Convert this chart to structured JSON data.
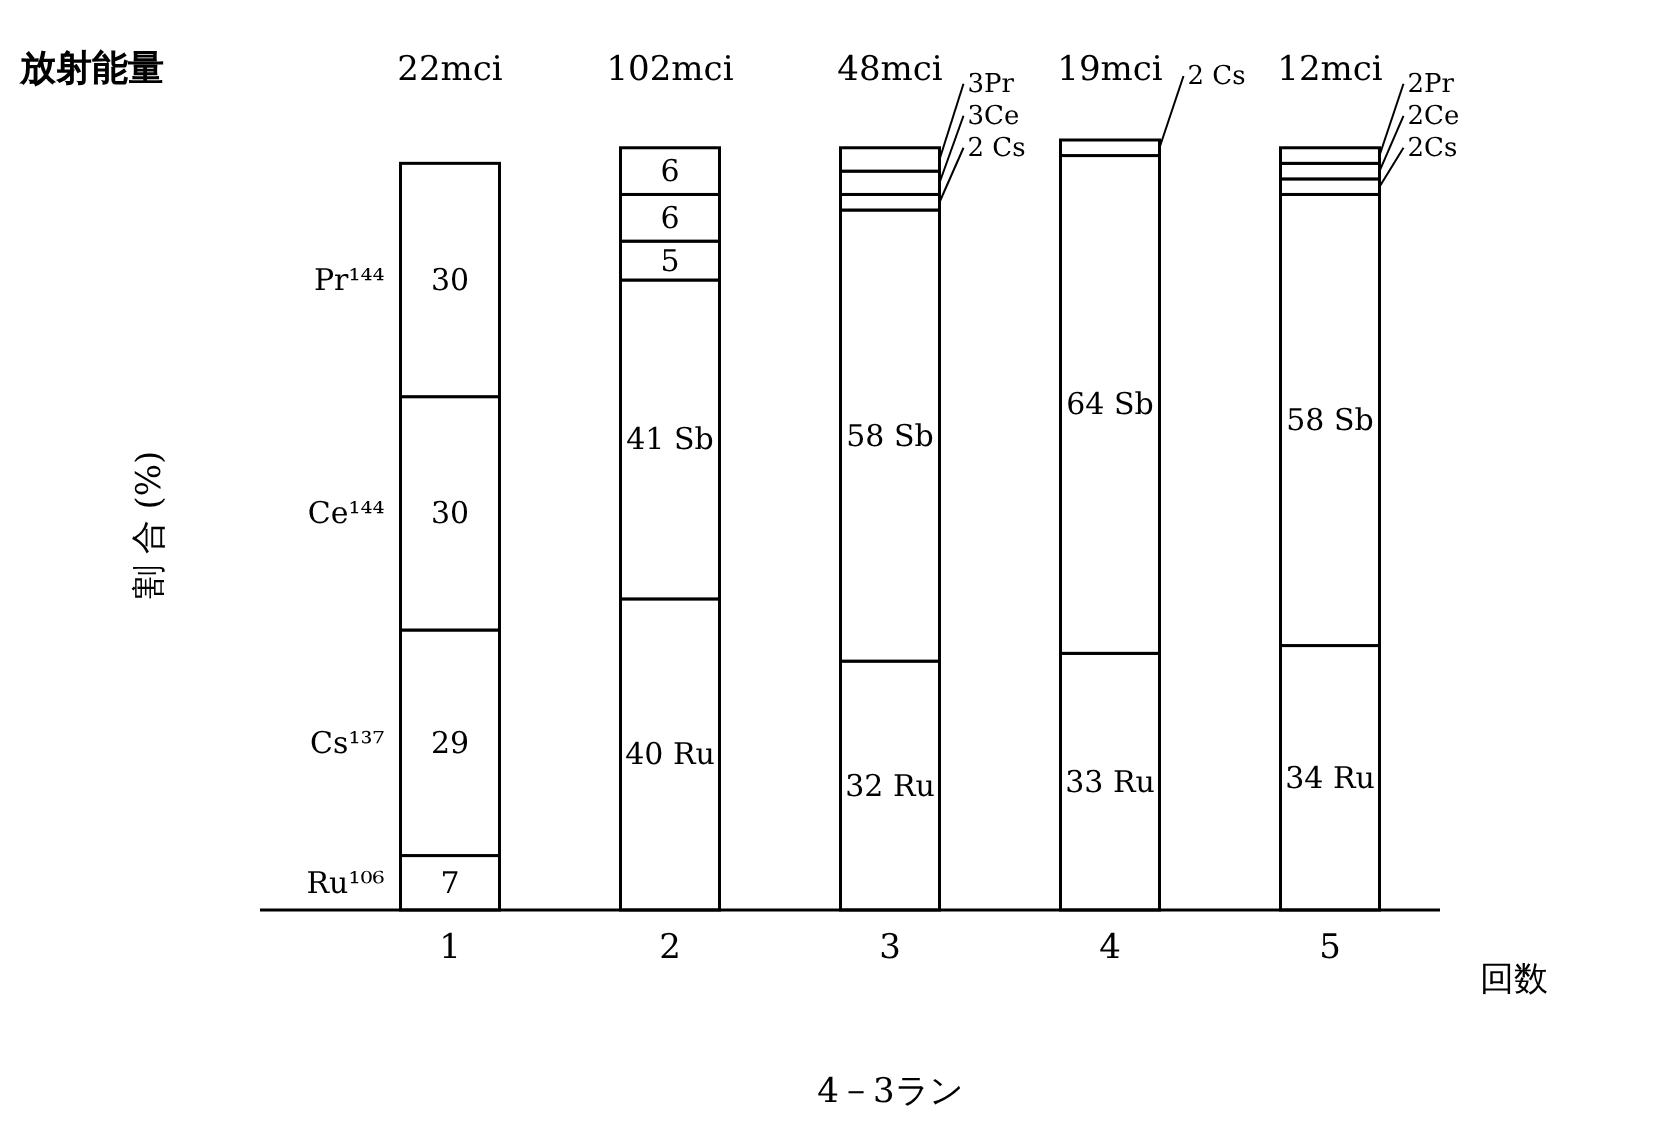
{
  "chart_data": {
    "type": "bar",
    "stacked": true,
    "title": "4－3ラン",
    "xlabel": "回数",
    "ylabel": "割 合 (%)",
    "categories": [
      "1",
      "2",
      "3",
      "4",
      "5"
    ],
    "series": [
      {
        "name": "Ru¹⁰⁶",
        "color": "#ffffff",
        "values": [
          7,
          40,
          32,
          33,
          34
        ],
        "value_labels": [
          "7",
          "40 Ru",
          "32 Ru",
          "33 Ru",
          "34 Ru"
        ]
      },
      {
        "color": "#ffffff",
        "values": [
          null,
          41,
          58,
          64,
          58
        ],
        "value_labels": [
          null,
          "41 Sb",
          "58 Sb",
          "64 Sb",
          "58 Sb"
        ]
      },
      {
        "name": "Cs¹³⁷",
        "color": "#ffffff",
        "values": [
          29,
          5,
          2,
          2,
          2
        ],
        "value_labels": [
          "29",
          "5",
          "2 Cs",
          "2 Cs",
          "2Cs"
        ]
      },
      {
        "name": "Ce¹⁴⁴",
        "color": "#ffffff",
        "values": [
          30,
          6,
          3,
          null,
          2
        ],
        "value_labels": [
          "30",
          "6",
          "3Ce",
          null,
          "2Ce"
        ]
      },
      {
        "name": "Pr¹⁴⁴",
        "color": "#ffffff",
        "values": [
          30,
          6,
          3,
          null,
          2
        ],
        "value_labels": [
          "30",
          "6",
          "3Pr",
          null,
          "2Pr"
        ]
      }
    ],
    "annotations": [
      "放射能量",
      "22mci",
      "102mci",
      "48mci",
      "19mci",
      "12mci"
    ]
  }
}
